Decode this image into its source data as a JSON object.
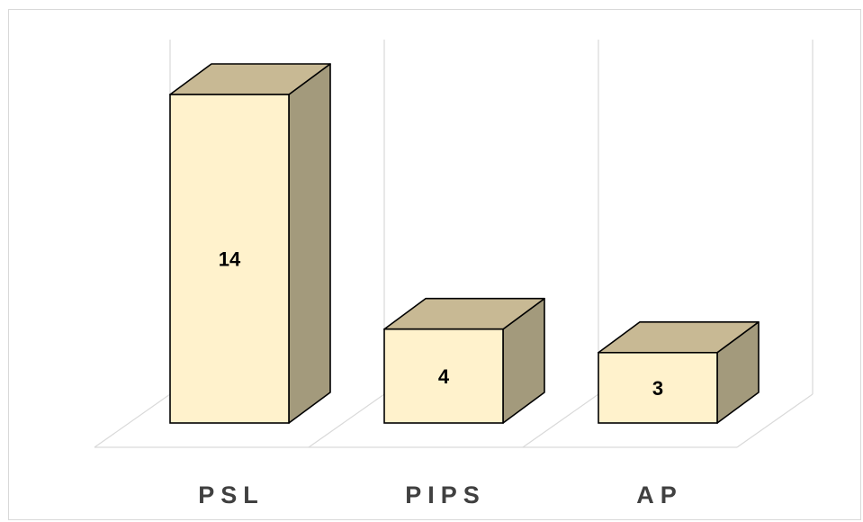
{
  "chart_data": {
    "type": "bar",
    "style": "3d-column",
    "categories": [
      "PSL",
      "PIPS",
      "AP"
    ],
    "values": [
      14,
      4,
      3
    ],
    "ylim": [
      0,
      14
    ],
    "grid": true,
    "legend": "none",
    "colors": {
      "front": "#fff2cc",
      "top": "#c8b994",
      "side": "#a39a7c",
      "edge": "#000000",
      "grid": "#d9d9d9",
      "category_text": "#404040"
    }
  }
}
